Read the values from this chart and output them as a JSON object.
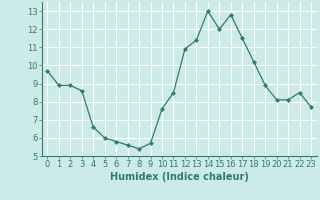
{
  "x": [
    0,
    1,
    2,
    3,
    4,
    5,
    6,
    7,
    8,
    9,
    10,
    11,
    12,
    13,
    14,
    15,
    16,
    17,
    18,
    19,
    20,
    21,
    22,
    23
  ],
  "y": [
    9.7,
    8.9,
    8.9,
    8.6,
    6.6,
    6.0,
    5.8,
    5.6,
    5.4,
    5.7,
    7.6,
    8.5,
    10.9,
    11.4,
    13.0,
    12.0,
    12.8,
    11.5,
    10.2,
    8.9,
    8.1,
    8.1,
    8.5,
    7.7
  ],
  "line_color": "#2e7d6e",
  "marker": "D",
  "marker_size": 2.0,
  "bg_color": "#cceae7",
  "grid_color": "#ffffff",
  "tick_color": "#2e7d6e",
  "label_color": "#2e7d6e",
  "xlabel": "Humidex (Indice chaleur)",
  "ylim": [
    5,
    13.5
  ],
  "yticks": [
    5,
    6,
    7,
    8,
    9,
    10,
    11,
    12,
    13
  ],
  "xticks": [
    0,
    1,
    2,
    3,
    4,
    5,
    6,
    7,
    8,
    9,
    10,
    11,
    12,
    13,
    14,
    15,
    16,
    17,
    18,
    19,
    20,
    21,
    22,
    23
  ],
  "xlabel_fontsize": 7,
  "tick_fontsize": 6
}
